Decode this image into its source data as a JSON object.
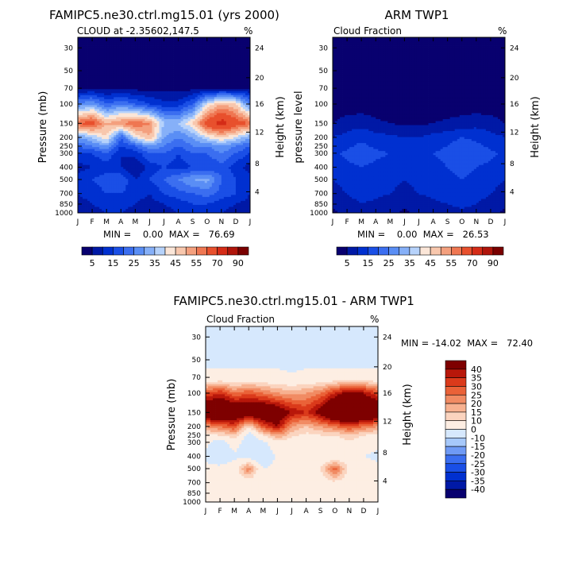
{
  "chart_data": [
    {
      "type": "heatmap",
      "title": "FAMIPC5.ne30.ctrl.mg15.01 (yrs 2000)",
      "subtitle": "CLOUD at -2.35602,147.5",
      "units": "%",
      "ylabel": "Pressure (mb)",
      "ylabel_right": "Height (km)",
      "stats": "MIN =    0.00  MAX =   76.69",
      "x": [
        "J",
        "F",
        "M",
        "A",
        "M",
        "J",
        "J",
        "A",
        "S",
        "O",
        "N",
        "D",
        "J"
      ],
      "pressure_ticks": [
        "30",
        "50",
        "70",
        "100",
        "150",
        "200",
        "250",
        "300",
        "400",
        "500",
        "700",
        "850",
        "1000"
      ],
      "height_ticks": [
        "24",
        "20",
        "16",
        "12",
        "8",
        "4"
      ],
      "colorbar_labels": [
        "5",
        "15",
        "25",
        "35",
        "45",
        "55",
        "70",
        "90"
      ],
      "z": [
        [
          2,
          2,
          2,
          2,
          2,
          2,
          2,
          2,
          2,
          2,
          2,
          2,
          2
        ],
        [
          2,
          2,
          2,
          2,
          2,
          2,
          2,
          2,
          2,
          2,
          2,
          2,
          2
        ],
        [
          4,
          4,
          3,
          3,
          3,
          3,
          3,
          3,
          3,
          3,
          4,
          4,
          4
        ],
        [
          25,
          30,
          20,
          25,
          20,
          15,
          12,
          12,
          20,
          40,
          50,
          45,
          25
        ],
        [
          60,
          65,
          50,
          55,
          60,
          55,
          35,
          35,
          45,
          65,
          75,
          65,
          60
        ],
        [
          30,
          35,
          45,
          20,
          40,
          50,
          30,
          25,
          30,
          40,
          45,
          40,
          30
        ],
        [
          20,
          25,
          30,
          15,
          20,
          30,
          25,
          20,
          25,
          25,
          30,
          25,
          20
        ],
        [
          15,
          15,
          20,
          10,
          12,
          20,
          20,
          15,
          20,
          20,
          25,
          20,
          15
        ],
        [
          8,
          10,
          12,
          10,
          5,
          12,
          15,
          12,
          15,
          15,
          18,
          12,
          8
        ],
        [
          12,
          15,
          18,
          20,
          10,
          15,
          20,
          25,
          30,
          32,
          20,
          15,
          12
        ],
        [
          10,
          12,
          15,
          15,
          12,
          10,
          15,
          18,
          20,
          22,
          18,
          15,
          10
        ],
        [
          8,
          10,
          12,
          12,
          10,
          8,
          10,
          12,
          15,
          15,
          12,
          10,
          8
        ],
        [
          6,
          8,
          10,
          10,
          8,
          6,
          8,
          10,
          12,
          12,
          10,
          8,
          6
        ]
      ]
    },
    {
      "type": "heatmap",
      "title": "ARM TWP1",
      "subtitle": "Cloud Fraction",
      "units": "%",
      "ylabel": "pressure level",
      "ylabel_right": "Height (km)",
      "stats": "MIN =    0.00  MAX =   26.53",
      "x": [
        "J",
        "F",
        "M",
        "A",
        "M",
        "J",
        "J",
        "A",
        "S",
        "O",
        "N",
        "D",
        "J"
      ],
      "pressure_ticks": [
        "30",
        "50",
        "70",
        "100",
        "150",
        "200",
        "250",
        "300",
        "400",
        "500",
        "700",
        "850",
        "1000"
      ],
      "height_ticks": [
        "24",
        "20",
        "16",
        "12",
        "8",
        "4"
      ],
      "colorbar_labels": [
        "5",
        "15",
        "25",
        "35",
        "45",
        "55",
        "70",
        "90"
      ],
      "z": [
        [
          1,
          1,
          1,
          1,
          1,
          1,
          1,
          1,
          1,
          1,
          1,
          1,
          1
        ],
        [
          1,
          1,
          1,
          1,
          1,
          1,
          1,
          1,
          1,
          1,
          1,
          1,
          1
        ],
        [
          1,
          1,
          1,
          1,
          1,
          1,
          1,
          1,
          1,
          1,
          1,
          1,
          1
        ],
        [
          2,
          2,
          2,
          2,
          2,
          2,
          2,
          2,
          2,
          2,
          2,
          2,
          2
        ],
        [
          5,
          7,
          8,
          6,
          5,
          4,
          4,
          5,
          6,
          7,
          8,
          7,
          5
        ],
        [
          10,
          12,
          14,
          12,
          11,
          10,
          10,
          12,
          13,
          15,
          14,
          12,
          10
        ],
        [
          12,
          14,
          16,
          14,
          13,
          12,
          12,
          14,
          15,
          18,
          16,
          14,
          12
        ],
        [
          14,
          16,
          18,
          16,
          15,
          14,
          14,
          15,
          16,
          20,
          18,
          16,
          14
        ],
        [
          12,
          14,
          15,
          14,
          13,
          12,
          13,
          14,
          15,
          16,
          15,
          14,
          12
        ],
        [
          10,
          12,
          13,
          14,
          12,
          10,
          12,
          13,
          14,
          15,
          14,
          12,
          10
        ],
        [
          8,
          10,
          12,
          11,
          10,
          8,
          10,
          11,
          12,
          13,
          12,
          10,
          8
        ],
        [
          6,
          8,
          10,
          9,
          8,
          6,
          8,
          9,
          10,
          11,
          10,
          8,
          6
        ],
        [
          4,
          6,
          8,
          7,
          6,
          4,
          6,
          7,
          8,
          9,
          8,
          6,
          4
        ]
      ]
    },
    {
      "type": "heatmap",
      "title": "FAMIPC5.ne30.ctrl.mg15.01 - ARM TWP1",
      "subtitle": "Cloud Fraction",
      "units": "%",
      "ylabel": "Pressure (mb)",
      "ylabel_right": "Height (km)",
      "stats": "MIN = -14.02  MAX =   72.40",
      "x": [
        "J",
        "F",
        "M",
        "A",
        "M",
        "J",
        "J",
        "A",
        "S",
        "O",
        "N",
        "D",
        "J"
      ],
      "pressure_ticks": [
        "30",
        "50",
        "70",
        "100",
        "150",
        "200",
        "250",
        "300",
        "400",
        "500",
        "700",
        "850",
        "1000"
      ],
      "height_ticks": [
        "24",
        "20",
        "16",
        "12",
        "8",
        "4"
      ],
      "colorbar_labels": [
        "40",
        "35",
        "30",
        "25",
        "20",
        "15",
        "10",
        "0",
        "-10",
        "-15",
        "-20",
        "-25",
        "-30",
        "-35",
        "-40"
      ],
      "z": [
        [
          -2,
          -2,
          -2,
          -2,
          -2,
          -2,
          -2,
          -2,
          -2,
          -2,
          -2,
          -2,
          -2
        ],
        [
          -2,
          -2,
          -2,
          -2,
          -2,
          -2,
          -3,
          -2,
          -2,
          -2,
          -2,
          -2,
          -2
        ],
        [
          2,
          2,
          2,
          2,
          2,
          2,
          1,
          2,
          2,
          2,
          2,
          2,
          2
        ],
        [
          30,
          35,
          25,
          30,
          25,
          20,
          18,
          20,
          25,
          35,
          45,
          40,
          30
        ],
        [
          55,
          60,
          55,
          50,
          55,
          50,
          40,
          35,
          45,
          60,
          70,
          60,
          55
        ],
        [
          20,
          25,
          30,
          10,
          30,
          40,
          20,
          15,
          20,
          25,
          30,
          25,
          20
        ],
        [
          8,
          10,
          15,
          -5,
          10,
          20,
          12,
          8,
          10,
          10,
          15,
          10,
          8
        ],
        [
          2,
          -5,
          5,
          -6,
          -3,
          8,
          5,
          2,
          5,
          5,
          8,
          5,
          2
        ],
        [
          -2,
          -8,
          -2,
          -5,
          -10,
          2,
          3,
          0,
          2,
          2,
          4,
          0,
          -2
        ],
        [
          2,
          3,
          5,
          25,
          0,
          4,
          6,
          8,
          10,
          28,
          8,
          5,
          2
        ],
        [
          2,
          2,
          3,
          5,
          2,
          2,
          4,
          6,
          6,
          8,
          5,
          4,
          2
        ],
        [
          1,
          2,
          2,
          3,
          2,
          2,
          2,
          3,
          3,
          4,
          2,
          2,
          1
        ],
        [
          1,
          1,
          1,
          2,
          1,
          1,
          1,
          2,
          2,
          2,
          1,
          1,
          1
        ]
      ]
    }
  ]
}
